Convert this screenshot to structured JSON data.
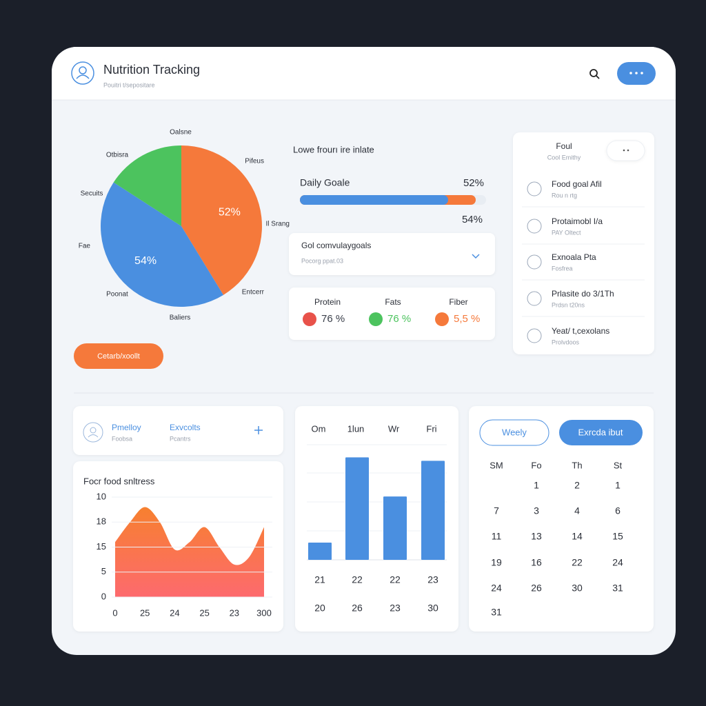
{
  "header": {
    "title": "Nutrition Tracking",
    "subtitle": "Pouitri t/sepositare"
  },
  "chart_data": [
    {
      "type": "pie",
      "values": [
        52,
        54,
        20
      ],
      "value_labels": [
        "52%",
        "54%",
        null
      ],
      "colors": [
        "#f5793b",
        "#4a8fe0",
        "#4cc35e"
      ],
      "annotations": [
        "Oalsne",
        "Otbisra",
        "Pifeus",
        "Secuits",
        "Fae",
        "Il Srang",
        "Poonat",
        "Entcerr",
        "Baliers"
      ]
    },
    {
      "type": "area",
      "title": "Focr food snltress",
      "x": [
        0,
        1,
        2,
        3,
        4,
        5,
        6,
        7,
        8,
        9,
        10
      ],
      "values": [
        11,
        15,
        18,
        15,
        9.5,
        11,
        14,
        10,
        6.5,
        8,
        14
      ],
      "gradient": [
        "#f7802f",
        "#fd6a6e"
      ],
      "xlim": [
        0,
        10
      ],
      "xticks": [
        0,
        {
          "value": 2,
          "label": "25"
        },
        {
          "value": 4,
          "label": "24"
        },
        {
          "value": 6,
          "label": "25"
        },
        {
          "value": 8,
          "label": "23"
        },
        {
          "value": 10,
          "label": "300"
        }
      ],
      "ylim": [
        0,
        20
      ],
      "yticks": [
        0,
        5,
        {
          "value": 10,
          "label": "15"
        },
        {
          "value": 15,
          "label": "18"
        },
        {
          "value": 20,
          "label": "10"
        }
      ]
    },
    {
      "type": "bar",
      "categories": [
        "Om",
        "1lun",
        "Wr",
        "Fri"
      ],
      "values": [
        15,
        89,
        55,
        86
      ],
      "ylim": [
        0,
        100
      ],
      "color": "#4a8fe0",
      "bottom_rows": [
        [
          "21",
          "22",
          "22",
          "23"
        ],
        [
          "20",
          "26",
          "23",
          "30"
        ]
      ]
    }
  ],
  "goals": {
    "heading": "Lowe frourı ire inlate",
    "title": "Daily Goale",
    "value": "52%",
    "sub_value": "54%"
  },
  "dropdown": {
    "title": "Gol comvulaygoals",
    "subtitle": "Pocorg ppat.03"
  },
  "macros": [
    {
      "name": "Protein",
      "value": "76 %",
      "color": "#e8524a"
    },
    {
      "name": "Fats",
      "value": "76 %",
      "color": "#4cc35e"
    },
    {
      "name": "Fiber",
      "value": "5,5 %",
      "color": "#f5793b"
    }
  ],
  "button": "Cetarb/xoollt",
  "sidebar": {
    "title": "Foul",
    "subtitle": "Cool Emithy",
    "items": [
      {
        "title": "Food goal Afil",
        "subtitle": "Rou n rtg"
      },
      {
        "title": "Protaimobl I/a",
        "subtitle": "PAY Oltect"
      },
      {
        "title": "Exnoala Pta",
        "subtitle": "Fosfrea"
      },
      {
        "title": "Prlasite do 3/1Th",
        "subtitle": "Prdsn t20ns"
      },
      {
        "title": "Yeat/ t,cexolans",
        "subtitle": "Prolvdoos"
      }
    ]
  },
  "tabs": [
    {
      "title": "Pmelloy",
      "subtitle": "Foobsa"
    },
    {
      "title": "Exvcolts",
      "subtitle": "Pcantrs"
    }
  ],
  "calendar": {
    "buttons": [
      "Weely",
      "Exrcda ibut"
    ],
    "weekdays": [
      "SM",
      "Fo",
      "Th",
      "St"
    ],
    "days": [
      [
        null,
        "1",
        "2",
        "1"
      ],
      [
        "7",
        "3",
        "4",
        "6"
      ],
      [
        "11",
        "13",
        "14",
        "15"
      ],
      [
        "19",
        "16",
        "22",
        "24"
      ],
      [
        "24",
        "26",
        "30",
        "31"
      ],
      [
        "31"
      ]
    ]
  }
}
